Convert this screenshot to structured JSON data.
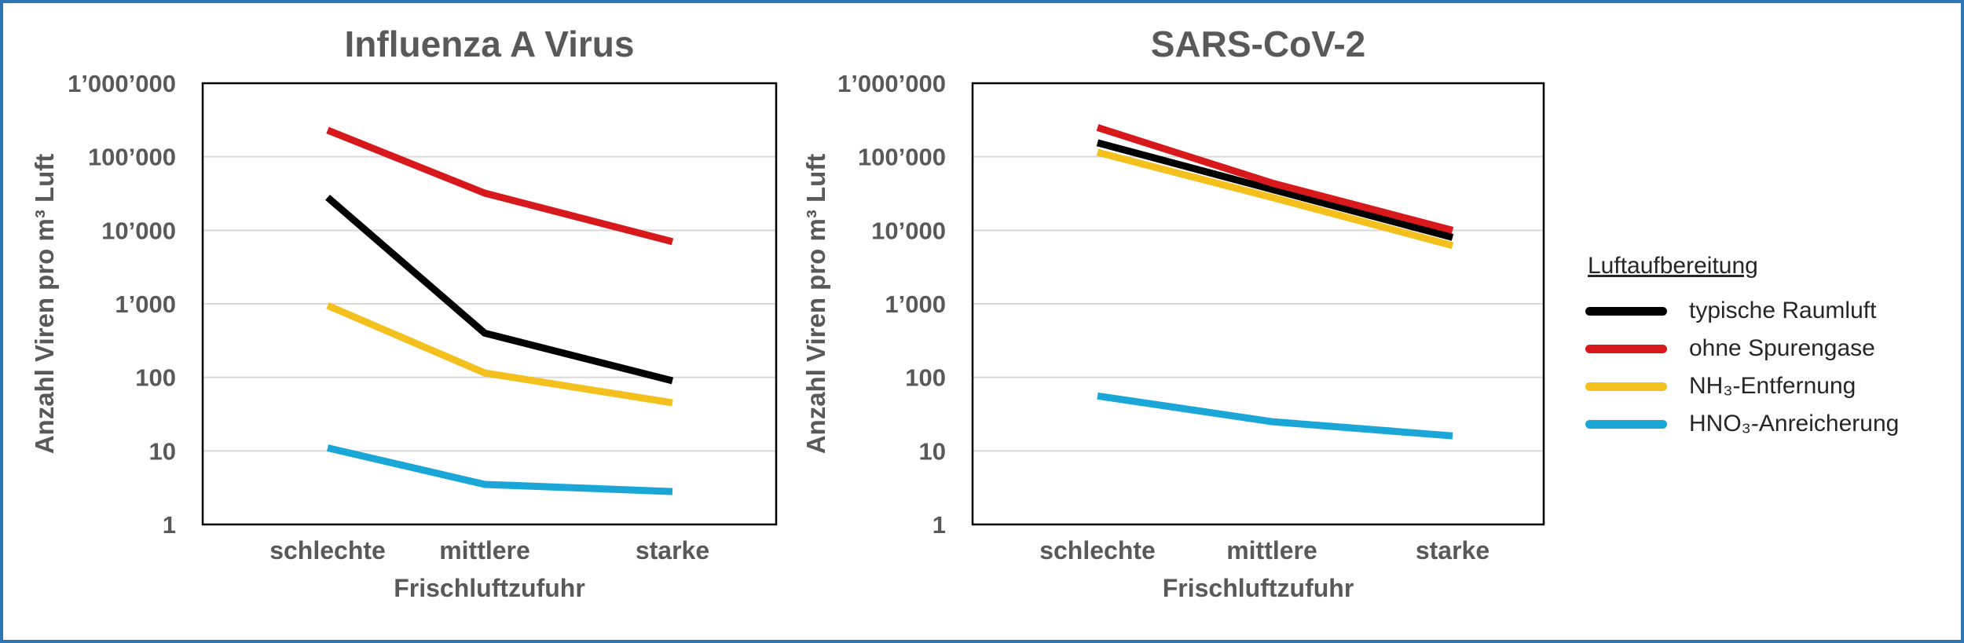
{
  "colors": {
    "typical": "#000000",
    "no_trace_gases": "#d7191c",
    "nh3_removal": "#f4c01e",
    "hno3_enrichment": "#1aa7d8",
    "frame": "#2e75b6",
    "text": "#595959"
  },
  "legend": {
    "title": "Luftaufbereitung",
    "items": [
      {
        "label": "typische Raumluft",
        "color": "#000000"
      },
      {
        "label": "ohne Spurengase",
        "color": "#d7191c"
      },
      {
        "label": "NH₃-Entfernung",
        "color": "#f4c01e"
      },
      {
        "label": "HNO₃-Anreicherung",
        "color": "#1aa7d8"
      }
    ]
  },
  "chart_data": [
    {
      "type": "line",
      "title": "Influenza A Virus",
      "xlabel": "Frischluftzufuhr",
      "ylabel": "Anzahl Viren pro m³ Luft",
      "yscale": "log",
      "ylim": [
        1,
        1000000
      ],
      "yticks": [
        1,
        10,
        100,
        1000,
        10000,
        100000,
        1000000
      ],
      "ytick_labels": [
        "1",
        "10",
        "100",
        "1’000",
        "10’000",
        "100’000",
        "1’000’000"
      ],
      "grid": true,
      "categories": [
        "schlechte",
        "mittlere",
        "starke"
      ],
      "series": [
        {
          "name": "typische Raumluft",
          "color": "#000000",
          "values": [
            28000,
            400,
            90
          ]
        },
        {
          "name": "ohne Spurengase",
          "color": "#d7191c",
          "values": [
            230000,
            32000,
            7000
          ]
        },
        {
          "name": "NH₃-Entfernung",
          "color": "#f4c01e",
          "values": [
            950,
            115,
            45
          ]
        },
        {
          "name": "HNO₃-Anreicherung",
          "color": "#1aa7d8",
          "values": [
            11,
            3.5,
            2.8
          ]
        }
      ]
    },
    {
      "type": "line",
      "title": "SARS-CoV-2",
      "xlabel": "Frischluftzufuhr",
      "ylabel": "Anzahl Viren pro m³ Luft",
      "yscale": "log",
      "ylim": [
        1,
        1000000
      ],
      "yticks": [
        1,
        10,
        100,
        1000,
        10000,
        100000,
        1000000
      ],
      "ytick_labels": [
        "1",
        "10",
        "100",
        "1’000",
        "10’000",
        "100’000",
        "1’000’000"
      ],
      "grid": true,
      "categories": [
        "schlechte",
        "mittlere",
        "starke"
      ],
      "series": [
        {
          "name": "typische Raumluft",
          "color": "#000000",
          "values": [
            155000,
            36000,
            8000
          ]
        },
        {
          "name": "ohne Spurengase",
          "color": "#d7191c",
          "values": [
            250000,
            44000,
            10000
          ]
        },
        {
          "name": "NH₃-Entfernung",
          "color": "#f4c01e",
          "values": [
            115000,
            28000,
            6200
          ]
        },
        {
          "name": "HNO₃-Anreicherung",
          "color": "#1aa7d8",
          "values": [
            56,
            25,
            16
          ]
        }
      ]
    }
  ]
}
